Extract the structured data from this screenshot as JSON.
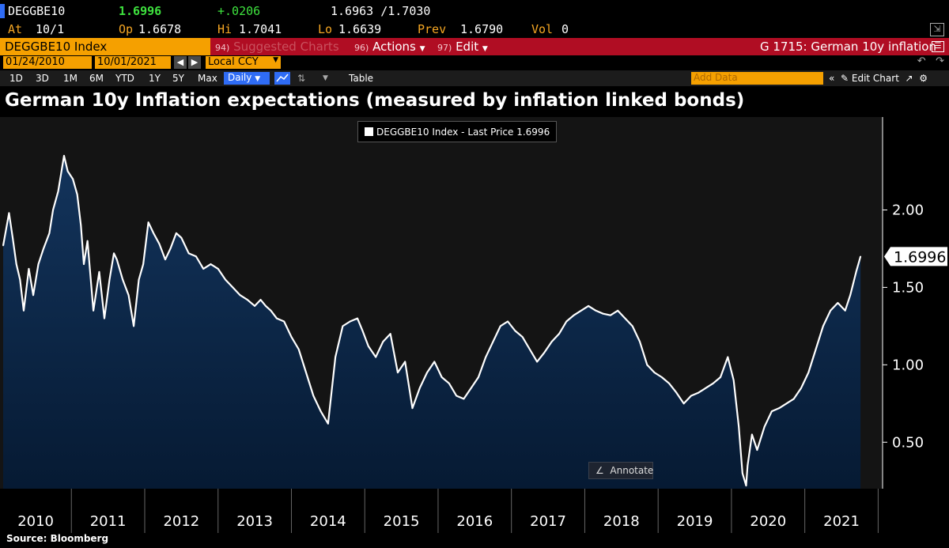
{
  "quote": {
    "ticker": "DEGGBE10",
    "last": "1.6996",
    "change": "+.0206",
    "bid_ask": "1.6963 /1.7030",
    "colors": {
      "last": "#3ee23e",
      "change": "#3ee23e",
      "flag": "#2f6cf5"
    }
  },
  "ohlc": {
    "at_label": "At",
    "at_value": "10/1",
    "open_label": "Op",
    "open_value": "1.6678",
    "high_label": "Hi",
    "high_value": "1.7041",
    "low_label": "Lo",
    "low_value": "1.6639",
    "prev_label": "Prev",
    "prev_value": "1.6790",
    "vol_label": "Vol",
    "vol_value": "0"
  },
  "security_bar": {
    "security": "DEGGBE10 Index",
    "suggested_num": "94)",
    "suggested": "Suggested Charts",
    "actions_num": "96)",
    "actions": "Actions",
    "edit_num": "97)",
    "edit": "Edit",
    "chart_code": "G 1715: German 10y inflation"
  },
  "date_range": {
    "start": "01/24/2010",
    "end": "10/01/2021",
    "currency": "Local CCY"
  },
  "toolbar": {
    "periods": [
      "1D",
      "3D",
      "1M",
      "6M",
      "YTD",
      "1Y",
      "5Y",
      "Max"
    ],
    "frequency": "Daily",
    "table": "Table",
    "add_data_placeholder": "Add Data",
    "edit_chart": "Edit Chart"
  },
  "legend": {
    "text": "DEGGBE10 Index - Last Price 1.6996"
  },
  "annotate": "Annotate",
  "source": "Source: Bloomberg",
  "chart_data": {
    "type": "area",
    "title": "German 10y Inflation expectations (measured by inflation linked bonds)",
    "xlabel": "",
    "ylabel": "",
    "x_ticks": [
      "2010",
      "2011",
      "2012",
      "2013",
      "2014",
      "2015",
      "2016",
      "2017",
      "2018",
      "2019",
      "2020",
      "2021"
    ],
    "y_ticks": [
      "0.50",
      "1.00",
      "1.50",
      "2.00"
    ],
    "y_tick_values": [
      0.5,
      1.0,
      1.5,
      2.0
    ],
    "ylim": [
      0.2,
      2.6
    ],
    "xlim": [
      2010.07,
      2021.78
    ],
    "last_value_label": "1.6996",
    "grid": false,
    "legend_position": "top-center",
    "colors": {
      "line": "#ffffff",
      "area_top": "#13345c",
      "area_bottom": "#061a33",
      "background": "#141414",
      "axis": "#ffffff"
    },
    "series": [
      {
        "name": "DEGGBE10 Index - Last Price",
        "x": [
          2010.07,
          2010.15,
          2010.2,
          2010.25,
          2010.3,
          2010.35,
          2010.42,
          2010.48,
          2010.55,
          2010.62,
          2010.7,
          2010.75,
          2010.82,
          2010.9,
          2010.95,
          2011.02,
          2011.08,
          2011.13,
          2011.17,
          2011.22,
          2011.3,
          2011.38,
          2011.45,
          2011.52,
          2011.58,
          2011.62,
          2011.7,
          2011.78,
          2011.85,
          2011.92,
          2011.98,
          2012.05,
          2012.12,
          2012.2,
          2012.28,
          2012.35,
          2012.43,
          2012.5,
          2012.6,
          2012.7,
          2012.8,
          2012.9,
          2013.0,
          2013.1,
          2013.2,
          2013.3,
          2013.4,
          2013.5,
          2013.58,
          2013.65,
          2013.72,
          2013.8,
          2013.9,
          2014.0,
          2014.1,
          2014.2,
          2014.3,
          2014.4,
          2014.5,
          2014.6,
          2014.7,
          2014.8,
          2014.9,
          2014.97,
          2015.05,
          2015.15,
          2015.25,
          2015.35,
          2015.45,
          2015.55,
          2015.65,
          2015.75,
          2015.85,
          2015.95,
          2016.05,
          2016.15,
          2016.25,
          2016.35,
          2016.45,
          2016.55,
          2016.65,
          2016.75,
          2016.85,
          2016.95,
          2017.05,
          2017.15,
          2017.25,
          2017.35,
          2017.45,
          2017.55,
          2017.65,
          2017.75,
          2017.85,
          2017.95,
          2018.05,
          2018.15,
          2018.25,
          2018.35,
          2018.45,
          2018.55,
          2018.65,
          2018.75,
          2018.85,
          2018.95,
          2019.05,
          2019.15,
          2019.25,
          2019.35,
          2019.45,
          2019.55,
          2019.65,
          2019.75,
          2019.85,
          2019.95,
          2020.03,
          2020.1,
          2020.15,
          2020.2,
          2020.22,
          2020.28,
          2020.35,
          2020.45,
          2020.55,
          2020.65,
          2020.75,
          2020.85,
          2020.95,
          2021.05,
          2021.15,
          2021.25,
          2021.35,
          2021.45,
          2021.55,
          2021.62,
          2021.7,
          2021.76
        ],
        "values": [
          1.77,
          1.98,
          1.82,
          1.65,
          1.55,
          1.35,
          1.62,
          1.45,
          1.65,
          1.75,
          1.85,
          2.0,
          2.12,
          2.35,
          2.25,
          2.2,
          2.1,
          1.9,
          1.65,
          1.8,
          1.35,
          1.6,
          1.3,
          1.55,
          1.72,
          1.68,
          1.55,
          1.45,
          1.25,
          1.55,
          1.65,
          1.92,
          1.85,
          1.78,
          1.68,
          1.75,
          1.85,
          1.82,
          1.72,
          1.7,
          1.62,
          1.65,
          1.62,
          1.55,
          1.5,
          1.45,
          1.42,
          1.38,
          1.42,
          1.38,
          1.35,
          1.3,
          1.28,
          1.18,
          1.1,
          0.95,
          0.8,
          0.7,
          0.62,
          1.05,
          1.25,
          1.28,
          1.3,
          1.22,
          1.12,
          1.05,
          1.15,
          1.2,
          0.95,
          1.02,
          0.72,
          0.85,
          0.95,
          1.02,
          0.92,
          0.88,
          0.8,
          0.78,
          0.85,
          0.92,
          1.05,
          1.15,
          1.25,
          1.28,
          1.22,
          1.18,
          1.1,
          1.02,
          1.08,
          1.15,
          1.2,
          1.28,
          1.32,
          1.35,
          1.38,
          1.35,
          1.33,
          1.32,
          1.35,
          1.3,
          1.25,
          1.15,
          1.0,
          0.95,
          0.92,
          0.88,
          0.82,
          0.75,
          0.8,
          0.82,
          0.85,
          0.88,
          0.92,
          1.05,
          0.9,
          0.6,
          0.3,
          0.22,
          0.35,
          0.55,
          0.45,
          0.6,
          0.7,
          0.72,
          0.75,
          0.78,
          0.85,
          0.95,
          1.1,
          1.25,
          1.35,
          1.4,
          1.35,
          1.45,
          1.6,
          1.7
        ]
      }
    ]
  }
}
